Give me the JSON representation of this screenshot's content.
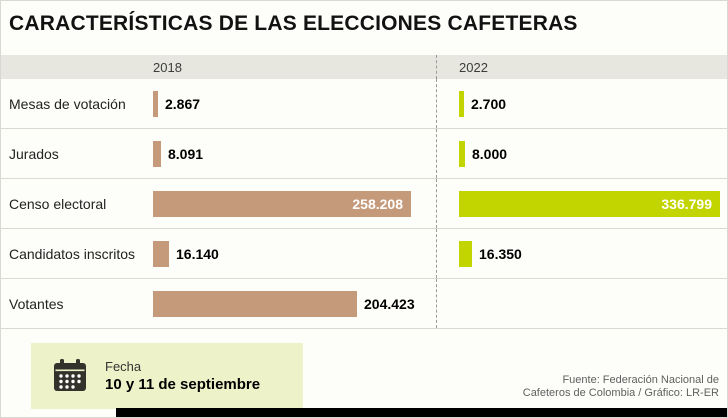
{
  "title": "CARACTERÍSTICAS DE LAS ELECCIONES CAFETERAS",
  "chart_data": {
    "type": "bar",
    "orientation": "horizontal",
    "title": "CARACTERÍSTICAS DE LAS ELECCIONES CAFETERAS",
    "categories": [
      "Mesas de votación",
      "Jurados",
      "Censo electoral",
      "Candidatos inscritos",
      "Votantes"
    ],
    "series": [
      {
        "name": "2018",
        "color": "#c49a7b",
        "values": [
          2867,
          8091,
          258208,
          16140,
          204423
        ],
        "labels": [
          "2.867",
          "8.091",
          "258.208",
          "16.140",
          "204.423"
        ]
      },
      {
        "name": "2022",
        "color": "#c2d500",
        "values": [
          2700,
          8000,
          336799,
          16350,
          null
        ],
        "labels": [
          "2.700",
          "8.000",
          "336.799",
          "16.350",
          null
        ]
      }
    ],
    "legend_position": "top",
    "grid": false
  },
  "footer": {
    "fecha_label": "Fecha",
    "fecha_value": "10 y 11 de septiembre",
    "source_line1": "Fuente: Federación Nacional de",
    "source_line2": "Cafeteros de Colombia / Gráfico: LR-ER"
  }
}
